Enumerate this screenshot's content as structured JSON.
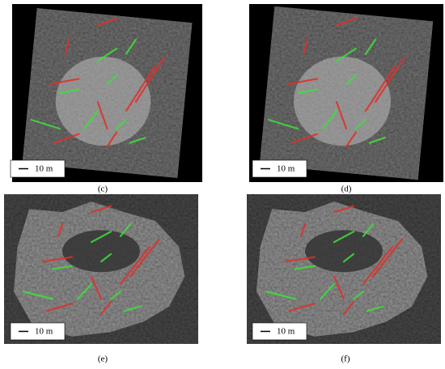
{
  "panels": [
    {
      "label": "(c)",
      "scale": "10 m"
    },
    {
      "label": "(d)",
      "scale": "10 m"
    },
    {
      "label": "(e)",
      "scale": "10 m"
    },
    {
      "label": "(f)",
      "scale": "10 m"
    }
  ]
}
